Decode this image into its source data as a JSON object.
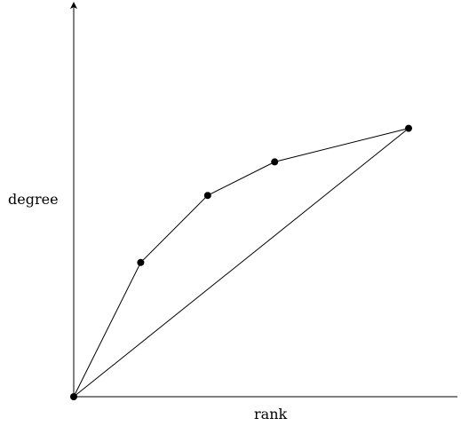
{
  "diagram": {
    "x_axis_label": "rank",
    "y_axis_label": "degree",
    "color": "#000000",
    "curve_points": [
      {
        "x": 0,
        "y": 0
      },
      {
        "x": 1,
        "y": 4
      },
      {
        "x": 2,
        "y": 6
      },
      {
        "x": 3,
        "y": 7
      },
      {
        "x": 5,
        "y": 8
      }
    ],
    "chord": {
      "from": 0,
      "to": 4
    }
  }
}
